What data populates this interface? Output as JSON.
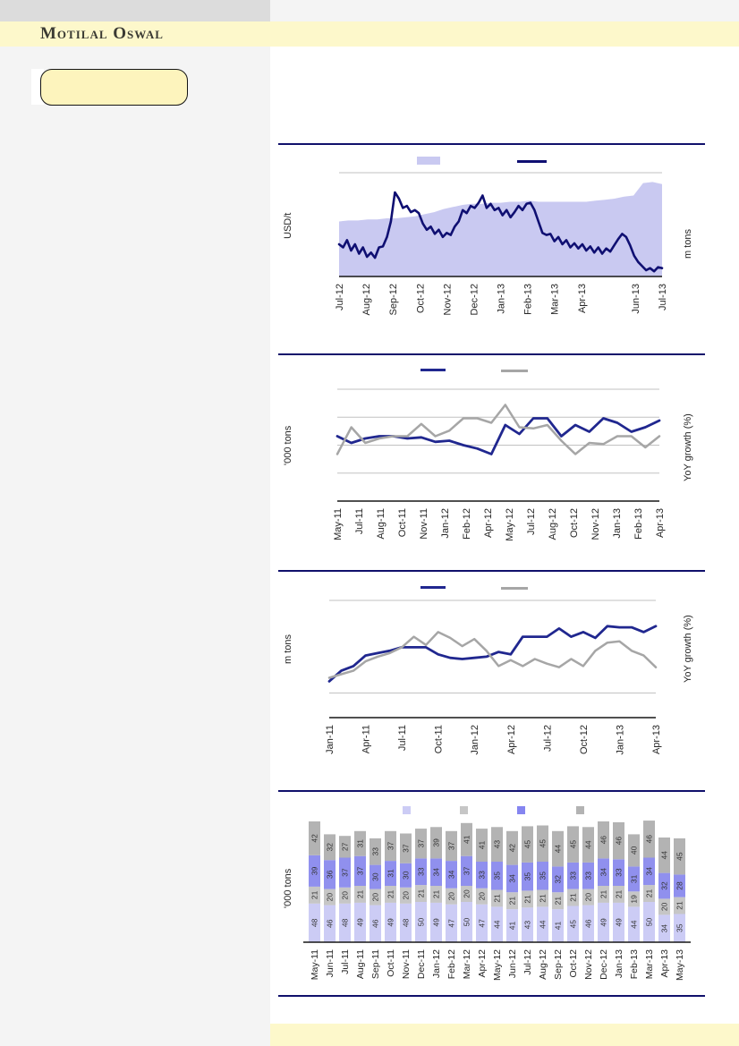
{
  "brand": {
    "name": "Motilal Oswal"
  },
  "colors": {
    "accent_navy": "#10106b",
    "band_yellow": "#fdf8cb",
    "callout_yellow": "#fdf4bd",
    "left_column_gray": "#f4f4f4",
    "top_bar_gray": "#dcdcdc",
    "area_lavender": "#c9c9f1",
    "line_navy": "#0f0f72",
    "line_bright_navy": "#20278f",
    "line_gray": "#a6a6a6",
    "bar_lavender": "#ccccf5",
    "bar_light_gray": "#c6c6c6",
    "bar_purple": "#9090ee",
    "bar_dark_gray": "#b3b3b3"
  },
  "chart_data": [
    {
      "id": "chart1",
      "type": "area",
      "title": "",
      "left_axis_label": "USD/t",
      "right_axis_label": "m tons",
      "x_labels": [
        "Jul-12",
        "Aug-12",
        "Sep-12",
        "Oct-12",
        "Nov-12",
        "Dec-12",
        "Jan-13",
        "Feb-13",
        "Mar-13",
        "Apr-13",
        "Jun-13",
        "Jul-13"
      ],
      "value_unit": "percent of plot height (no numeric y-axis labels visible in source)",
      "legend": [
        {
          "swatch": "area",
          "color": "#c9c9f1",
          "label": ""
        },
        {
          "swatch": "line",
          "color": "#0f0f72",
          "label": ""
        }
      ],
      "series": [
        {
          "name": "lavender-area-series",
          "style": "area",
          "color": "#c9c9f1",
          "values": [
            53,
            54,
            54,
            55,
            55,
            56,
            56,
            57,
            58,
            60,
            62,
            65,
            67,
            69,
            70,
            70,
            71,
            71,
            72,
            72,
            73,
            72,
            72,
            72,
            72,
            72,
            72,
            73,
            74,
            75,
            77,
            78,
            90,
            91,
            89
          ]
        },
        {
          "name": "navy-line-series",
          "style": "line",
          "color": "#0f0f72",
          "width": 2.6,
          "values": [
            31,
            28,
            35,
            25,
            31,
            22,
            28,
            19,
            23,
            18,
            28,
            29,
            38,
            53,
            81,
            75,
            66,
            68,
            62,
            64,
            61,
            51,
            45,
            48,
            41,
            45,
            38,
            42,
            40,
            48,
            53,
            64,
            61,
            68,
            66,
            71,
            78,
            66,
            70,
            64,
            66,
            59,
            64,
            57,
            62,
            68,
            64,
            70,
            71,
            64,
            53,
            42,
            40,
            41,
            34,
            38,
            31,
            35,
            28,
            32,
            27,
            31,
            25,
            29,
            23,
            28,
            22,
            27,
            24,
            30,
            36,
            41,
            38,
            30,
            20,
            14,
            10,
            6,
            8,
            5,
            9,
            8
          ]
        }
      ]
    },
    {
      "id": "chart2",
      "type": "line",
      "title": "",
      "left_axis_label": "'000 tons",
      "right_axis_label": "YoY growth (%)",
      "x_labels": [
        "May-11",
        "Jul-11",
        "Aug-11",
        "Oct-11",
        "Nov-11",
        "Jan-12",
        "Feb-12",
        "Apr-12",
        "May-12",
        "Jul-12",
        "Aug-12",
        "Oct-12",
        "Nov-12",
        "Jan-13",
        "Feb-13",
        "Apr-13"
      ],
      "value_unit": "percent of plot height (no numeric y-axis labels visible in source)",
      "legend": [
        {
          "swatch": "line",
          "color": "#20278f",
          "label": ""
        },
        {
          "swatch": "line",
          "color": "#a6a6a6",
          "label": ""
        }
      ],
      "series": [
        {
          "name": "navy-line-series",
          "style": "line",
          "color": "#20278f",
          "width": 2.8,
          "values": [
            58,
            52,
            56,
            58,
            58,
            56,
            57,
            53,
            54,
            50,
            47,
            42,
            68,
            60,
            74,
            74,
            58,
            68,
            62,
            74,
            70,
            62,
            66,
            72
          ]
        },
        {
          "name": "gray-line-series",
          "style": "line",
          "color": "#a6a6a6",
          "width": 2.5,
          "values": [
            42,
            66,
            52,
            56,
            58,
            58,
            69,
            58,
            63,
            74,
            74,
            70,
            86,
            66,
            65,
            68,
            54,
            42,
            52,
            51,
            58,
            58,
            48,
            58
          ]
        }
      ]
    },
    {
      "id": "chart3",
      "type": "line",
      "title": "",
      "left_axis_label": "m tons",
      "right_axis_label": "YoY growth (%)",
      "x_labels": [
        "Jan-11",
        "Apr-11",
        "Jul-11",
        "Oct-11",
        "Jan-12",
        "Apr-12",
        "Jul-12",
        "Oct-12",
        "Jan-13",
        "Apr-13"
      ],
      "value_unit": "percent of plot height (no numeric y-axis labels visible in source)",
      "legend": [
        {
          "swatch": "line",
          "color": "#20278f",
          "label": ""
        },
        {
          "swatch": "line",
          "color": "#a6a6a6",
          "label": ""
        }
      ],
      "series": [
        {
          "name": "navy-line-series",
          "style": "line",
          "color": "#20278f",
          "width": 2.8,
          "values": [
            31,
            40,
            44,
            53,
            55,
            57,
            60,
            60,
            60,
            54,
            51,
            50,
            51,
            52,
            56,
            54,
            69,
            69,
            69,
            76,
            69,
            73,
            68,
            78,
            77,
            77,
            73,
            78
          ]
        },
        {
          "name": "gray-line-series",
          "style": "line",
          "color": "#a6a6a6",
          "width": 2.5,
          "values": [
            34,
            37,
            40,
            48,
            52,
            55,
            60,
            69,
            62,
            73,
            68,
            61,
            67,
            57,
            44,
            49,
            44,
            50,
            46,
            43,
            50,
            44,
            57,
            64,
            65,
            57,
            53,
            43
          ]
        }
      ]
    },
    {
      "id": "chart4",
      "type": "bar",
      "title": "",
      "left_axis_label": "'000 tons",
      "value_unit": "'000 tons (data labels printed on bars)",
      "categories": [
        "May-11",
        "Jun-11",
        "Jul-11",
        "Aug-11",
        "Sep-11",
        "Oct-11",
        "Nov-11",
        "Dec-11",
        "Jan-12",
        "Feb-12",
        "Mar-12",
        "Apr-12",
        "May-12",
        "Jun-12",
        "Jul-12",
        "Aug-12",
        "Sep-12",
        "Oct-12",
        "Nov-12",
        "Dec-12",
        "Jan-13",
        "Feb-13",
        "Mar-13",
        "Apr-13",
        "May-13"
      ],
      "legend": [
        {
          "swatch": "square",
          "color": "#ccccf5",
          "label": ""
        },
        {
          "swatch": "square",
          "color": "#c6c6c6",
          "label": ""
        },
        {
          "swatch": "square",
          "color": "#8585f0",
          "label": ""
        },
        {
          "swatch": "square",
          "color": "#b3b3b3",
          "label": ""
        }
      ],
      "series": [
        {
          "name": "segment-1-lavender",
          "color": "#ccccf5",
          "values": [
            48,
            46,
            48,
            49,
            46,
            49,
            48,
            50,
            49,
            47,
            50,
            47,
            44,
            41,
            43,
            44,
            41,
            45,
            46,
            49,
            49,
            44,
            50,
            34,
            35
          ]
        },
        {
          "name": "segment-2-light-gray",
          "color": "#c6c6c6",
          "values": [
            21,
            20,
            20,
            21,
            20,
            21,
            20,
            21,
            21,
            20,
            20,
            20,
            21,
            21,
            21,
            21,
            21,
            21,
            20,
            21,
            21,
            19,
            21,
            20,
            21
          ]
        },
        {
          "name": "segment-3-purple",
          "color": "#9090ee",
          "values": [
            39,
            36,
            37,
            37,
            30,
            31,
            30,
            33,
            34,
            34,
            37,
            33,
            35,
            34,
            35,
            35,
            32,
            33,
            33,
            34,
            33,
            31,
            34,
            32,
            28
          ]
        },
        {
          "name": "segment-4-gray",
          "color": "#b3b3b3",
          "values": [
            42,
            32,
            27,
            31,
            33,
            37,
            37,
            37,
            39,
            37,
            41,
            41,
            43,
            42,
            45,
            45,
            44,
            45,
            44,
            46,
            46,
            40,
            46,
            44,
            45
          ]
        }
      ]
    }
  ]
}
